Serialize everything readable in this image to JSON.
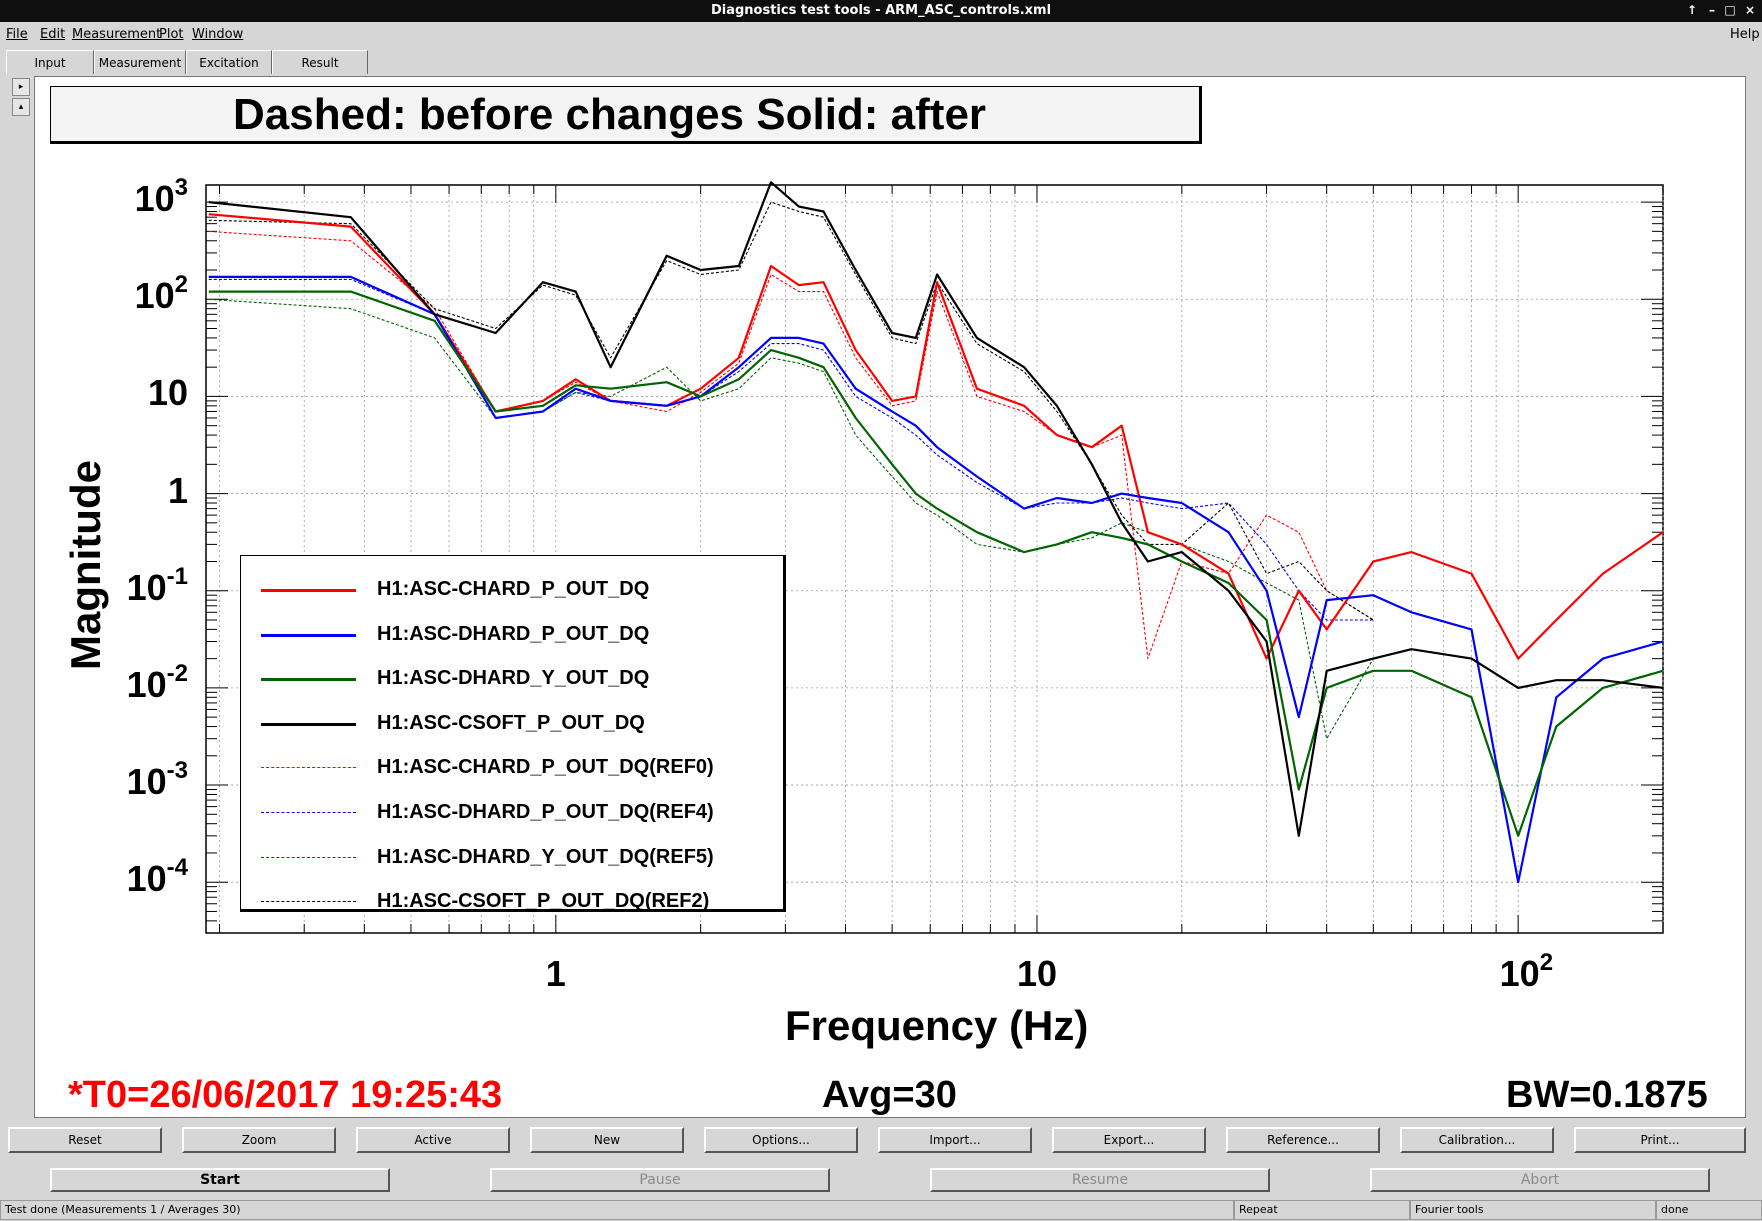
{
  "window": {
    "title": "Diagnostics test tools - ARM_ASC_controls.xml"
  },
  "menu": {
    "file": "File",
    "edit": "Edit",
    "measurement": "Measurement",
    "plot": "Plot",
    "window": "Window",
    "help": "Help"
  },
  "tabs": [
    "Input",
    "Measurement",
    "Excitation",
    "Result"
  ],
  "active_tab": "Result",
  "plot_title": "Dashed: before changes Solid: after",
  "chart_data": {
    "type": "line",
    "title": "Dashed: before changes Solid: after",
    "xlabel": "Frequency (Hz)",
    "ylabel": "Magnitude",
    "x_scale": "log",
    "y_scale": "log",
    "xlim": [
      0.1875,
      200
    ],
    "ylim": [
      3e-05,
      1500
    ],
    "grid": true,
    "legend_position": "bottom-left",
    "x_ticks": [
      {
        "label": "1",
        "value": 1
      },
      {
        "label": "10",
        "value": 10
      },
      {
        "label": "10",
        "sup": "2",
        "value": 100
      }
    ],
    "y_ticks": [
      {
        "label": "10",
        "sup": "3",
        "value": 1000
      },
      {
        "label": "10",
        "sup": "2",
        "value": 100
      },
      {
        "label": "10",
        "sup": "",
        "value": 10
      },
      {
        "label": "1",
        "sup": "",
        "value": 1
      },
      {
        "label": "10",
        "sup": "-1",
        "value": 0.1
      },
      {
        "label": "10",
        "sup": "-2",
        "value": 0.01
      },
      {
        "label": "10",
        "sup": "-3",
        "value": 0.001
      },
      {
        "label": "10",
        "sup": "-4",
        "value": 0.0001
      }
    ],
    "series": [
      {
        "name": "H1:ASC-CHARD_P_OUT_DQ",
        "color": "#ff0000",
        "style": "solid",
        "x": [
          0.19,
          0.375,
          0.56,
          0.75,
          0.94,
          1.1,
          1.3,
          1.7,
          2.0,
          2.4,
          2.8,
          3.2,
          3.6,
          4.2,
          5.0,
          5.6,
          6.2,
          7.5,
          9.4,
          11,
          13,
          15,
          17,
          20,
          25,
          30,
          35,
          40,
          50,
          60,
          80,
          100,
          120,
          150,
          200
        ],
        "y": [
          750,
          560,
          70,
          7,
          9,
          15,
          9,
          8,
          12,
          25,
          220,
          140,
          150,
          30,
          9,
          10,
          150,
          12,
          8,
          4,
          3,
          5,
          0.4,
          0.3,
          0.15,
          0.02,
          0.1,
          0.04,
          0.2,
          0.25,
          0.15,
          0.02,
          0.05,
          0.15,
          0.4
        ]
      },
      {
        "name": "H1:ASC-DHARD_P_OUT_DQ",
        "color": "#0000ff",
        "style": "solid",
        "x": [
          0.19,
          0.375,
          0.56,
          0.75,
          0.94,
          1.1,
          1.3,
          1.7,
          2.0,
          2.4,
          2.8,
          3.2,
          3.6,
          4.2,
          5.0,
          5.6,
          6.2,
          7.5,
          9.4,
          11,
          13,
          15,
          17,
          20,
          25,
          30,
          35,
          40,
          50,
          60,
          80,
          100,
          120,
          150,
          200
        ],
        "y": [
          170,
          170,
          70,
          6,
          7,
          12,
          9,
          8,
          10,
          20,
          40,
          40,
          35,
          12,
          7,
          5,
          3,
          1.5,
          0.7,
          0.9,
          0.8,
          1.0,
          0.9,
          0.8,
          0.4,
          0.1,
          0.005,
          0.08,
          0.09,
          0.06,
          0.04,
          0.0001,
          0.008,
          0.02,
          0.03
        ]
      },
      {
        "name": "H1:ASC-DHARD_Y_OUT_DQ",
        "color": "#006400",
        "style": "solid",
        "x": [
          0.19,
          0.375,
          0.56,
          0.75,
          0.94,
          1.1,
          1.3,
          1.7,
          2.0,
          2.4,
          2.8,
          3.2,
          3.6,
          4.2,
          5.0,
          5.6,
          6.2,
          7.5,
          9.4,
          11,
          13,
          15,
          17,
          20,
          25,
          30,
          35,
          40,
          50,
          60,
          80,
          100,
          120,
          150,
          200
        ],
        "y": [
          120,
          120,
          60,
          7,
          8,
          13,
          12,
          14,
          10,
          15,
          30,
          25,
          20,
          6,
          2,
          1.0,
          0.7,
          0.4,
          0.25,
          0.3,
          0.4,
          0.35,
          0.3,
          0.2,
          0.12,
          0.05,
          0.0009,
          0.01,
          0.015,
          0.015,
          0.008,
          0.0003,
          0.004,
          0.01,
          0.015
        ]
      },
      {
        "name": "H1:ASC-CSOFT_P_OUT_DQ",
        "color": "#000000",
        "style": "solid",
        "x": [
          0.19,
          0.375,
          0.56,
          0.75,
          0.94,
          1.1,
          1.3,
          1.7,
          2.0,
          2.4,
          2.8,
          3.2,
          3.6,
          4.2,
          5.0,
          5.6,
          6.2,
          7.5,
          9.4,
          11,
          13,
          15,
          17,
          20,
          25,
          30,
          35,
          40,
          50,
          60,
          80,
          100,
          120,
          150,
          200
        ],
        "y": [
          1000,
          700,
          70,
          45,
          150,
          120,
          20,
          280,
          200,
          220,
          1600,
          900,
          800,
          200,
          45,
          40,
          180,
          40,
          20,
          8,
          2,
          0.5,
          0.2,
          0.25,
          0.1,
          0.03,
          0.0003,
          0.015,
          0.02,
          0.025,
          0.02,
          0.01,
          0.012,
          0.012,
          0.01
        ]
      },
      {
        "name": "H1:ASC-CHARD_P_OUT_DQ(REF0)",
        "color": "#ff0000",
        "style": "dashed",
        "x": [
          0.19,
          0.375,
          0.56,
          0.75,
          0.94,
          1.1,
          1.3,
          1.7,
          2.0,
          2.4,
          2.8,
          3.2,
          3.6,
          4.2,
          5.0,
          5.6,
          6.2,
          7.5,
          9.4,
          11,
          13,
          15,
          17,
          20,
          25,
          30,
          35,
          40,
          50
        ],
        "y": [
          500,
          400,
          80,
          7,
          9,
          14,
          9,
          7,
          11,
          22,
          180,
          120,
          120,
          25,
          8,
          9,
          120,
          10,
          7,
          4,
          3,
          4,
          0.02,
          0.2,
          0.15,
          0.6,
          0.4,
          0.1,
          0.05
        ]
      },
      {
        "name": "H1:ASC-DHARD_P_OUT_DQ(REF4)",
        "color": "#0000ff",
        "style": "dashed",
        "x": [
          0.19,
          0.375,
          0.56,
          0.75,
          0.94,
          1.1,
          1.3,
          1.7,
          2.0,
          2.4,
          2.8,
          3.2,
          3.6,
          4.2,
          5.0,
          5.6,
          6.2,
          7.5,
          9.4,
          11,
          13,
          15,
          17,
          20,
          25,
          30,
          35,
          40,
          50
        ],
        "y": [
          160,
          160,
          70,
          6,
          7,
          11,
          9,
          8,
          10,
          18,
          35,
          35,
          30,
          10,
          6,
          4,
          2.5,
          1.3,
          0.7,
          0.8,
          0.8,
          0.9,
          0.8,
          0.7,
          0.8,
          0.3,
          0.1,
          0.05,
          0.05
        ]
      },
      {
        "name": "H1:ASC-DHARD_Y_OUT_DQ(REF5)",
        "color": "#006400",
        "style": "dashed",
        "x": [
          0.19,
          0.375,
          0.56,
          0.75,
          0.94,
          1.1,
          1.3,
          1.7,
          2.0,
          2.4,
          2.8,
          3.2,
          3.6,
          4.2,
          5.0,
          5.6,
          6.2,
          7.5,
          9.4,
          11,
          13,
          15,
          17,
          20,
          25,
          30,
          35,
          40,
          50
        ],
        "y": [
          100,
          80,
          40,
          6,
          7,
          11,
          10,
          20,
          9,
          12,
          25,
          22,
          18,
          4,
          1.5,
          0.8,
          0.6,
          0.3,
          0.25,
          0.3,
          0.35,
          0.5,
          0.4,
          0.3,
          0.2,
          0.12,
          0.08,
          0.003,
          0.02
        ]
      },
      {
        "name": "H1:ASC-CSOFT_P_OUT_DQ(REF2)",
        "color": "#000000",
        "style": "dashed",
        "x": [
          0.19,
          0.375,
          0.56,
          0.75,
          0.94,
          1.1,
          1.3,
          1.7,
          2.0,
          2.4,
          2.8,
          3.2,
          3.6,
          4.2,
          5.0,
          5.6,
          6.2,
          7.5,
          9.4,
          11,
          13,
          15,
          17,
          20,
          25,
          30,
          35,
          40,
          50
        ],
        "y": [
          650,
          600,
          80,
          50,
          140,
          110,
          25,
          250,
          180,
          200,
          1000,
          800,
          700,
          180,
          40,
          35,
          150,
          35,
          18,
          7,
          2,
          0.6,
          0.3,
          0.3,
          0.8,
          0.15,
          0.2,
          0.1,
          0.05
        ]
      }
    ]
  },
  "footer": {
    "t0": "*T0=26/06/2017 19:25:43",
    "avg": "Avg=30",
    "bw": "BW=0.1875"
  },
  "toolbar": [
    "Reset",
    "Zoom",
    "Active",
    "New",
    "Options...",
    "Import...",
    "Export...",
    "Reference...",
    "Calibration...",
    "Print..."
  ],
  "controls": {
    "start": "Start",
    "pause": "Pause",
    "resume": "Resume",
    "abort": "Abort"
  },
  "statusbar": {
    "message": "Test done (Measurements 1 / Averages 30)",
    "mode": "Repeat",
    "tools": "Fourier tools",
    "state": "done"
  }
}
